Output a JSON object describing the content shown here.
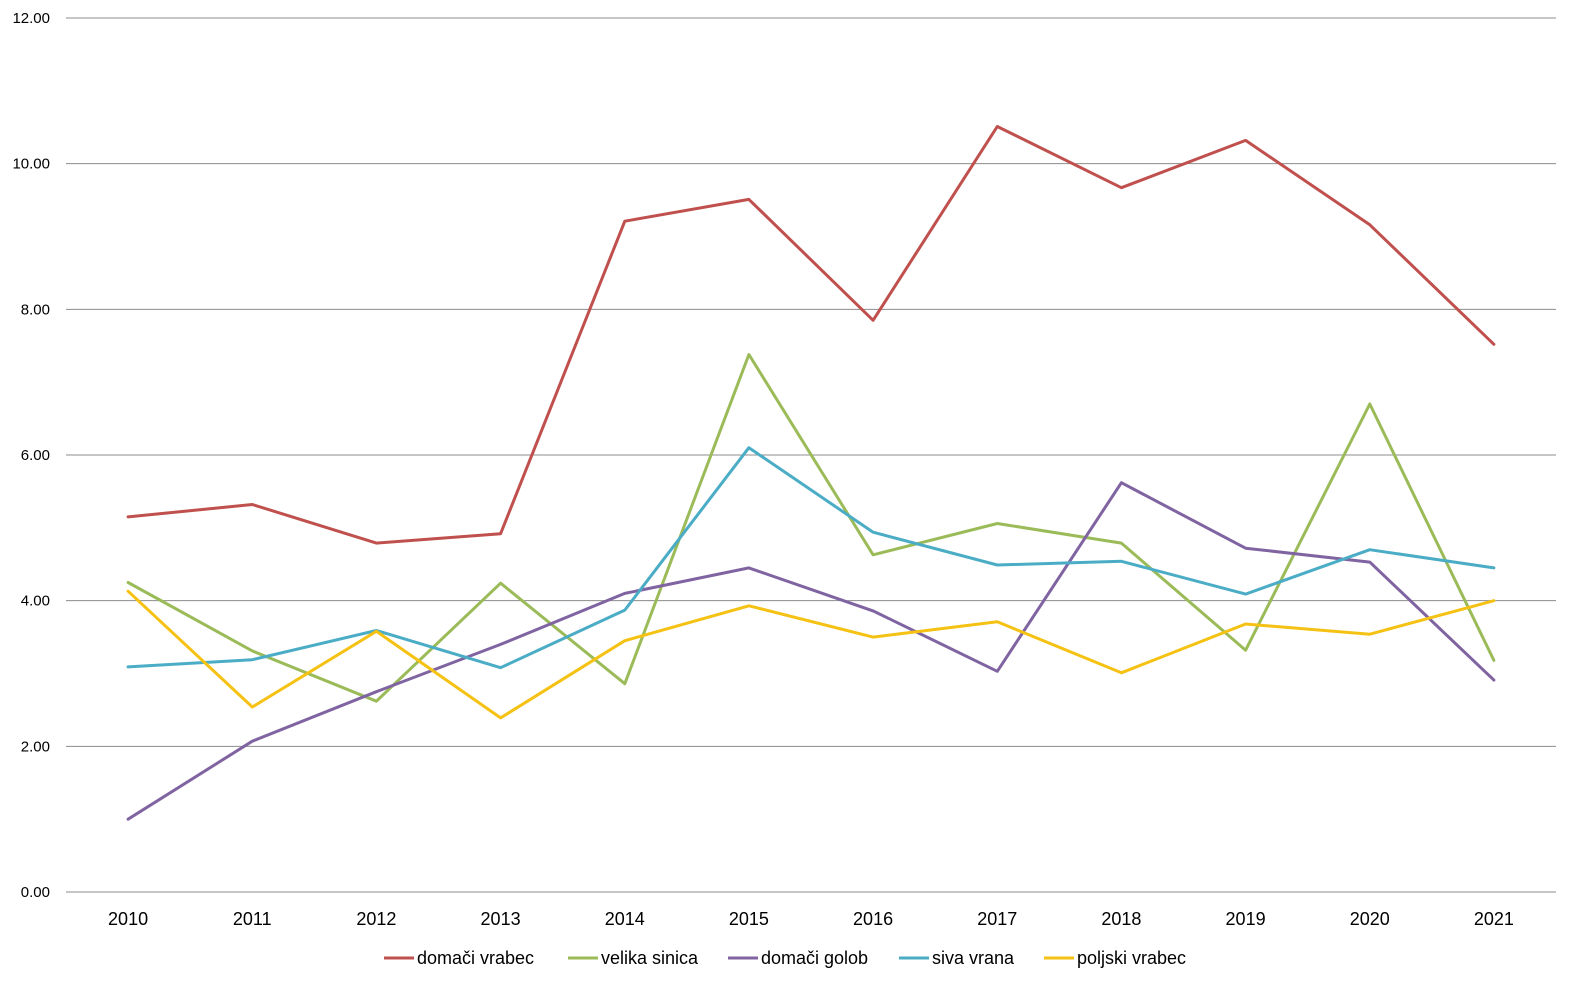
{
  "chart_data": {
    "type": "line",
    "title": "",
    "xlabel": "",
    "ylabel": "",
    "ylim": [
      0,
      12
    ],
    "y_ticks": [
      "0.00",
      "2.00",
      "4.00",
      "6.00",
      "8.00",
      "10.00",
      "12.00"
    ],
    "grid": "horizontal",
    "legend_position": "bottom",
    "categories": [
      "2010",
      "2011",
      "2012",
      "2013",
      "2014",
      "2015",
      "2016",
      "2017",
      "2018",
      "2019",
      "2020",
      "2021"
    ],
    "series": [
      {
        "name": "domači vrabec",
        "color": "#C0504D",
        "values": [
          5.15,
          5.32,
          4.79,
          4.92,
          9.21,
          9.51,
          7.85,
          10.51,
          9.67,
          10.32,
          9.16,
          7.52
        ]
      },
      {
        "name": "velika sinica",
        "color": "#9BBB59",
        "values": [
          4.25,
          3.31,
          2.62,
          4.24,
          2.86,
          7.38,
          4.63,
          5.06,
          4.79,
          3.32,
          6.7,
          3.18
        ]
      },
      {
        "name": "domači golob",
        "color": "#8064A2",
        "values": [
          1.0,
          2.07,
          2.75,
          3.4,
          4.1,
          4.45,
          3.86,
          3.03,
          5.62,
          4.72,
          4.53,
          2.91
        ]
      },
      {
        "name": "siva vrana",
        "color": "#4BACC6",
        "values": [
          3.09,
          3.19,
          3.59,
          3.08,
          3.87,
          6.1,
          4.94,
          4.49,
          4.54,
          4.09,
          4.7,
          4.45
        ]
      },
      {
        "name": "poljski vrabec",
        "color": "#F5C214",
        "values": [
          4.13,
          2.54,
          3.58,
          2.39,
          3.45,
          3.93,
          3.5,
          3.71,
          3.01,
          3.68,
          3.54,
          4.0
        ]
      }
    ]
  }
}
